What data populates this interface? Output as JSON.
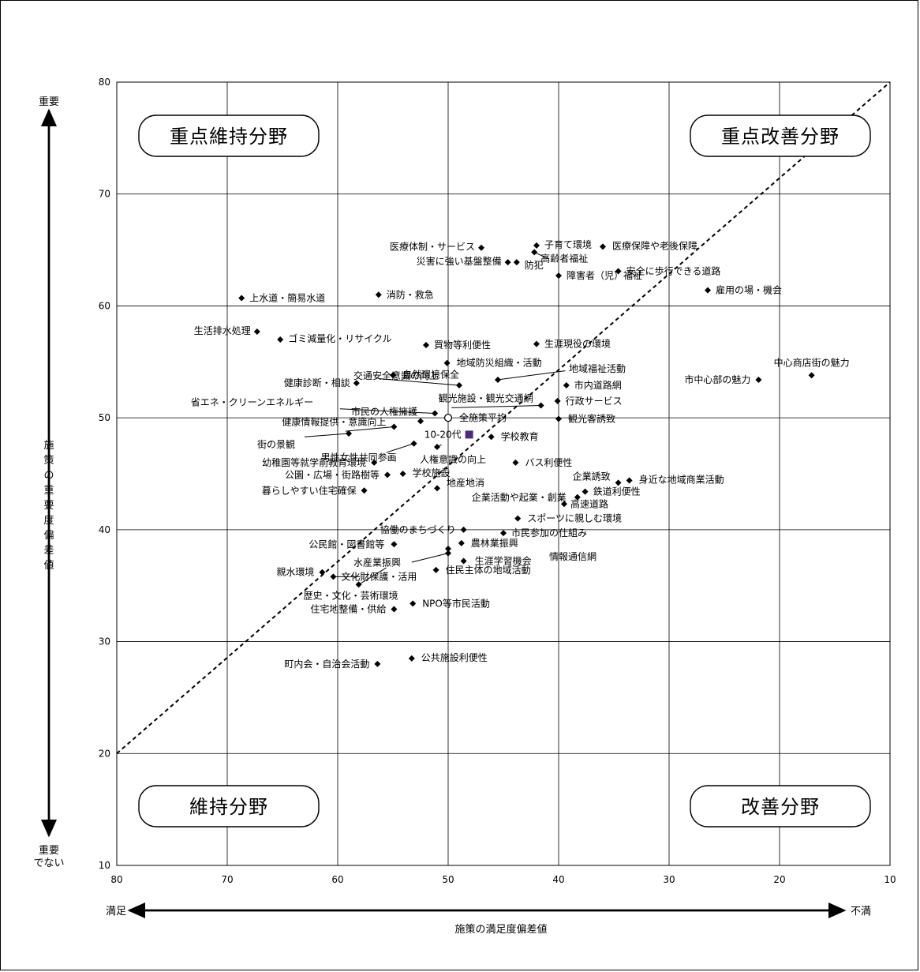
{
  "chart_data": {
    "type": "scatter",
    "xlim": [
      80,
      10
    ],
    "ylim": [
      10,
      80
    ],
    "x_ticks": [
      "80",
      "70",
      "60",
      "50",
      "40",
      "30",
      "20",
      "10"
    ],
    "y_ticks": [
      "10",
      "20",
      "30",
      "40",
      "50",
      "60",
      "70",
      "80"
    ],
    "grid": true,
    "xlabel": "施策の満足度偏差値",
    "ylabel": "施策の重要度偏差値",
    "x_left_label": "満足",
    "x_right_label": "不満",
    "y_top_label": "重要",
    "y_bottom_label": "重要でない",
    "quadrants": {
      "top_left": "重点維持分野",
      "top_right": "重点改善分野",
      "bottom_left": "維持分野",
      "bottom_right": "改善分野"
    },
    "reference_line": {
      "from": [
        80,
        20
      ],
      "to": [
        10,
        80
      ]
    },
    "average_label": "全施策平均",
    "highlight": {
      "label": "10-20代",
      "x": 48.1,
      "y": 48.5,
      "color": "#4b2a7a"
    },
    "points": [
      {
        "label": "医療体制・サービス",
        "x": 47.0,
        "y": 65.2
      },
      {
        "label": "子育て環境",
        "x": 42.0,
        "y": 65.4
      },
      {
        "label": "医療保障や老後保障",
        "x": 36.0,
        "y": 65.3
      },
      {
        "label": "災害に強い基盤整備",
        "x": 44.6,
        "y": 63.9
      },
      {
        "label": "防犯",
        "x": 43.8,
        "y": 63.9
      },
      {
        "label": "高齢者福祉",
        "x": 42.2,
        "y": 64.8
      },
      {
        "label": "安全に歩行できる道路",
        "x": 34.6,
        "y": 63.1
      },
      {
        "label": "障害者（児）福祉",
        "x": 40.0,
        "y": 62.7
      },
      {
        "label": "雇用の場・機会",
        "x": 26.5,
        "y": 61.4
      },
      {
        "label": "上水道・簡易水道",
        "x": 68.7,
        "y": 60.7
      },
      {
        "label": "消防・救急",
        "x": 56.3,
        "y": 61.0
      },
      {
        "label": "生活排水処理",
        "x": 67.3,
        "y": 57.7
      },
      {
        "label": "ゴミ減量化・リサイクル",
        "x": 65.2,
        "y": 57.0
      },
      {
        "label": "買物等利便性",
        "x": 52.0,
        "y": 56.5
      },
      {
        "label": "生涯現役の環境",
        "x": 42.0,
        "y": 56.6
      },
      {
        "label": "地域防災組織・活動",
        "x": 50.1,
        "y": 54.9
      },
      {
        "label": "自然環境保全",
        "x": 55.0,
        "y": 53.8
      },
      {
        "label": "地域福祉活動",
        "x": 45.5,
        "y": 53.4
      },
      {
        "label": "健康診断・相談",
        "x": 58.3,
        "y": 53.1
      },
      {
        "label": "交通安全意識の向上",
        "x": 49.0,
        "y": 52.9
      },
      {
        "label": "市内道路網",
        "x": 39.3,
        "y": 52.9
      },
      {
        "label": "中心商店街の魅力",
        "x": 17.1,
        "y": 53.8
      },
      {
        "label": "市中心部の魅力",
        "x": 21.9,
        "y": 53.4
      },
      {
        "label": "行政サービス",
        "x": 40.1,
        "y": 51.5
      },
      {
        "label": "観光施設・観光交通網",
        "x": 41.6,
        "y": 51.1
      },
      {
        "label": "省エネ・クリーンエネルギー",
        "x": 51.2,
        "y": 50.4
      },
      {
        "label": "全施策平均",
        "x": 50.0,
        "y": 50.0
      },
      {
        "label": "市民の人権擁護",
        "x": 52.5,
        "y": 49.7
      },
      {
        "label": "観光客誘致",
        "x": 40.0,
        "y": 49.9
      },
      {
        "label": "健康情報提供・意識向上",
        "x": 54.9,
        "y": 49.2
      },
      {
        "label": "街の景観",
        "x": 59.0,
        "y": 48.6
      },
      {
        "label": "学校教育",
        "x": 46.1,
        "y": 48.3
      },
      {
        "label": "男性女性共同参画",
        "x": 53.1,
        "y": 47.7
      },
      {
        "label": "人権意識の向上",
        "x": 51.0,
        "y": 47.4
      },
      {
        "label": "バス利便性",
        "x": 43.9,
        "y": 46.0
      },
      {
        "label": "幼稚園等就学前教育環境",
        "x": 56.7,
        "y": 46.0
      },
      {
        "label": "公園・広場・街路樹等",
        "x": 55.5,
        "y": 44.9
      },
      {
        "label": "学校施設",
        "x": 54.1,
        "y": 45.0
      },
      {
        "label": "身近な地域商業活動",
        "x": 33.6,
        "y": 44.4
      },
      {
        "label": "企業誘致",
        "x": 34.6,
        "y": 44.2
      },
      {
        "label": "鉄道利便性",
        "x": 37.6,
        "y": 43.4
      },
      {
        "label": "地産地消",
        "x": 51.0,
        "y": 43.7
      },
      {
        "label": "暮らしやすい住宅確保",
        "x": 57.6,
        "y": 43.5
      },
      {
        "label": "企業活動や起業・創業",
        "x": 38.3,
        "y": 42.9
      },
      {
        "label": "高速道路",
        "x": 39.5,
        "y": 42.3
      },
      {
        "label": "スポーツに親しむ環境",
        "x": 43.7,
        "y": 41.0
      },
      {
        "label": "協働のまちづくり",
        "x": 48.6,
        "y": 40.0
      },
      {
        "label": "市民参加の仕組み",
        "x": 45.0,
        "y": 39.7
      },
      {
        "label": "公民館・図書館等",
        "x": 54.9,
        "y": 38.7
      },
      {
        "label": "農林業振興",
        "x": 48.8,
        "y": 38.8
      },
      {
        "label": "水産業振興",
        "x": 50.0,
        "y": 37.9
      },
      {
        "label": "情報通信網",
        "x": 50.0,
        "y": 38.3
      },
      {
        "label": "生涯学習機会",
        "x": 48.6,
        "y": 37.2
      },
      {
        "label": "住民主体の地域活動",
        "x": 51.1,
        "y": 36.4
      },
      {
        "label": "親水環境",
        "x": 61.4,
        "y": 36.2
      },
      {
        "label": "文化財保護・活用",
        "x": 60.4,
        "y": 35.8
      },
      {
        "label": "歴史・文化・芸術環境",
        "x": 58.1,
        "y": 35.1
      },
      {
        "label": "NPO等市民活動",
        "x": 53.2,
        "y": 33.4
      },
      {
        "label": "住宅地整備・供給",
        "x": 54.9,
        "y": 32.9
      },
      {
        "label": "公共施設利便性",
        "x": 53.3,
        "y": 28.5
      },
      {
        "label": "町内会・自治会活動",
        "x": 56.4,
        "y": 28.0
      }
    ]
  }
}
